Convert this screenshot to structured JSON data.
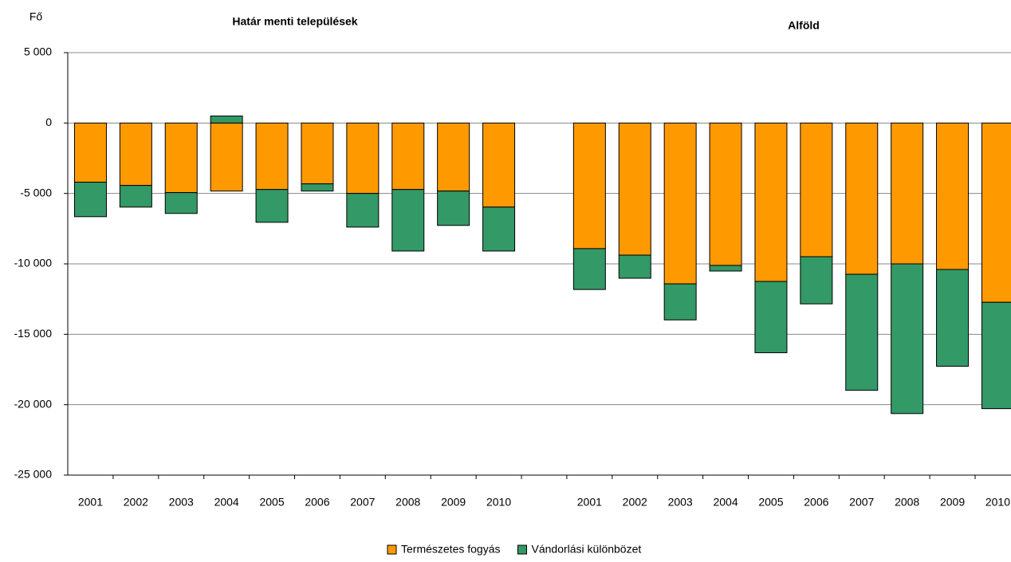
{
  "chart_data": {
    "type": "stacked_bar",
    "ylabel": "Fő",
    "annotations": [
      "Határ menti települések",
      "Alföld"
    ],
    "categories": [
      "2001",
      "2002",
      "2003",
      "2004",
      "2005",
      "2006",
      "2007",
      "2008",
      "2009",
      "2010",
      null,
      "2001",
      "2002",
      "2003",
      "2004",
      "2005",
      "2006",
      "2007",
      "2008",
      "2009",
      "2010"
    ],
    "series": [
      {
        "name": "Természetes fogyás",
        "color": "#FF9900",
        "values": [
          -4200,
          -4430,
          -4940,
          -4830,
          -4720,
          -4320,
          -5000,
          -4720,
          -4830,
          -5970,
          null,
          -8920,
          -9380,
          -11420,
          -10110,
          -11250,
          -9490,
          -10740,
          -10000,
          -10400,
          -12730
        ]
      },
      {
        "name": "Vándorlási különbözet",
        "color": "#339966",
        "values": [
          -2450,
          -1540,
          -1480,
          500,
          -2330,
          -510,
          -2390,
          -4370,
          -2440,
          -3120,
          null,
          -2900,
          -1640,
          -2560,
          -400,
          -5060,
          -3350,
          -8240,
          -10630,
          -6870,
          -7550
        ]
      }
    ],
    "ylim": [
      -25000,
      5000
    ],
    "yticks": [
      {
        "value": 5000,
        "label": "5 000"
      },
      0,
      {
        "value": -5000,
        "label": "-5 000"
      },
      {
        "value": -10000,
        "label": "-10 000"
      },
      {
        "value": -15000,
        "label": "-15 000"
      },
      {
        "value": -20000,
        "label": "-20 000"
      },
      {
        "value": -25000,
        "label": "-25 000"
      }
    ],
    "grid": true,
    "legend": "bottom"
  }
}
